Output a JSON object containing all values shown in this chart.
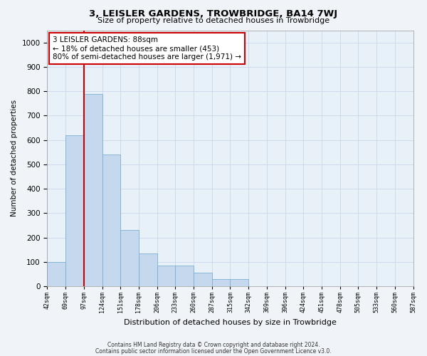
{
  "title": "3, LEISLER GARDENS, TROWBRIDGE, BA14 7WJ",
  "subtitle": "Size of property relative to detached houses in Trowbridge",
  "xlabel": "Distribution of detached houses by size in Trowbridge",
  "ylabel": "Number of detached properties",
  "bar_color": "#c5d8ee",
  "bar_edge_color": "#7bafd4",
  "background_color": "#e8f0f8",
  "grid_color": "#cad8ea",
  "tick_labels": [
    "42sqm",
    "69sqm",
    "97sqm",
    "124sqm",
    "151sqm",
    "178sqm",
    "206sqm",
    "233sqm",
    "260sqm",
    "287sqm",
    "315sqm",
    "342sqm",
    "369sqm",
    "396sqm",
    "424sqm",
    "451sqm",
    "478sqm",
    "505sqm",
    "533sqm",
    "560sqm",
    "587sqm"
  ],
  "bar_values": [
    100,
    620,
    790,
    540,
    230,
    135,
    85,
    85,
    55,
    30,
    30,
    0,
    0,
    0,
    0,
    0,
    0,
    0,
    0,
    0
  ],
  "ylim": [
    0,
    1050
  ],
  "yticks": [
    0,
    100,
    200,
    300,
    400,
    500,
    600,
    700,
    800,
    900,
    1000
  ],
  "vline_color": "#cc0000",
  "annotation_text": "3 LEISLER GARDENS: 88sqm\n← 18% of detached houses are smaller (453)\n80% of semi-detached houses are larger (1,971) →",
  "annotation_box_color": "#ffffff",
  "annotation_box_edge": "#cc0000",
  "footer1": "Contains HM Land Registry data © Crown copyright and database right 2024.",
  "footer2": "Contains public sector information licensed under the Open Government Licence v3.0."
}
